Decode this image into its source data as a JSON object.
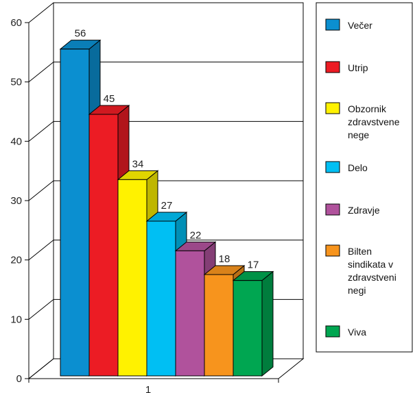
{
  "chart_data": {
    "type": "bar",
    "categories": [
      "1"
    ],
    "ylim": [
      0,
      60
    ],
    "yticks": [
      0,
      10,
      20,
      30,
      40,
      50,
      60
    ],
    "grid": true,
    "legend_position": "right",
    "series": [
      {
        "name": "Večer",
        "values": [
          56
        ],
        "color": "#0b8fd0"
      },
      {
        "name": "Utrip",
        "values": [
          45
        ],
        "color": "#ec1c24"
      },
      {
        "name": "Obzornik zdravstvene nege",
        "values": [
          34
        ],
        "color": "#fff200"
      },
      {
        "name": "Delo",
        "values": [
          27
        ],
        "color": "#00bff3"
      },
      {
        "name": "Zdravje",
        "values": [
          22
        ],
        "color": "#b0529c"
      },
      {
        "name": "Bilten sindikata v zdravstveni negi",
        "values": [
          18
        ],
        "color": "#f7941d"
      },
      {
        "name": "Viva",
        "values": [
          17
        ],
        "color": "#00a651"
      }
    ],
    "legend_lines": [
      [
        "Večer"
      ],
      [
        "Utrip"
      ],
      [
        "Obzornik",
        "zdravstvene",
        "nege"
      ],
      [
        "Delo"
      ],
      [
        "Zdravje"
      ],
      [
        "Bilten",
        "sindikata v",
        "zdravstveni",
        "negi"
      ],
      [
        "Viva"
      ]
    ]
  }
}
